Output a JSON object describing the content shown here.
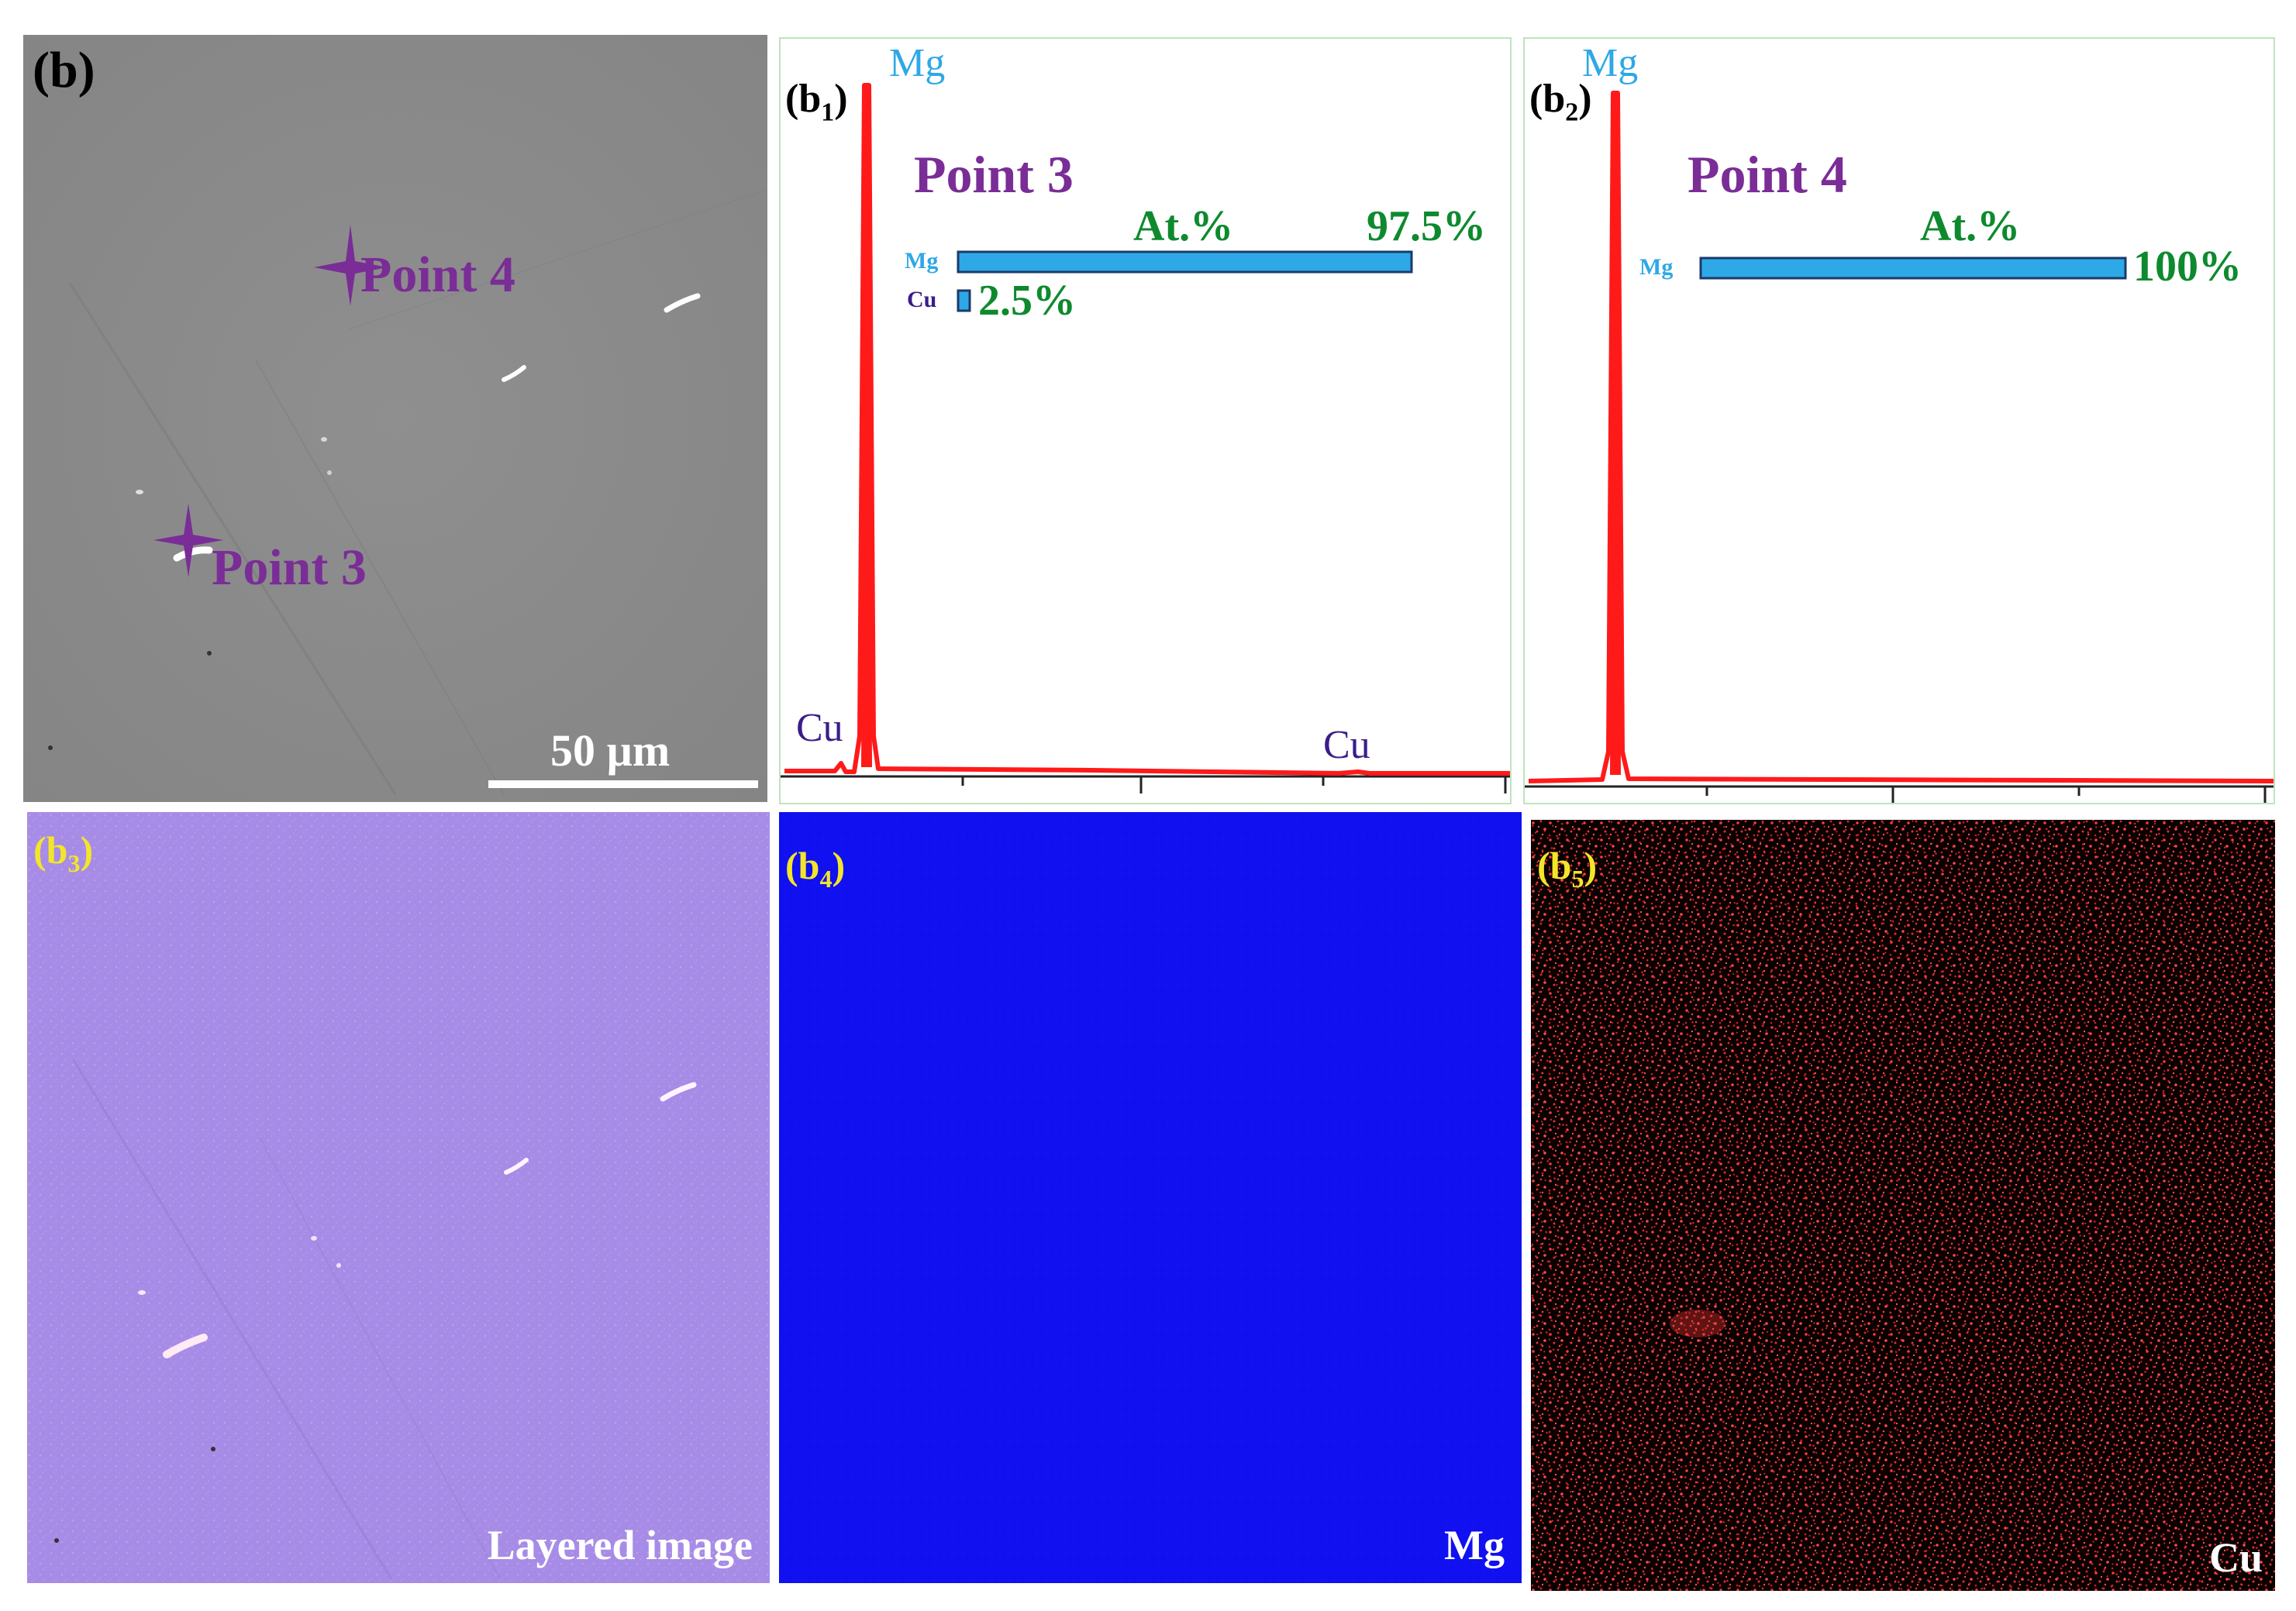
{
  "panels": {
    "b": {
      "label": "(b)",
      "scale_bar": "50 µm",
      "points": [
        {
          "label": "Point 4"
        },
        {
          "label": "Point 3"
        }
      ]
    },
    "b1": {
      "label_main": "(b",
      "label_sub": "1",
      "label_close": ")"
    },
    "b2": {
      "label_main": "(b",
      "label_sub": "2",
      "label_close": ")"
    },
    "b3": {
      "label_main": "(b",
      "label_sub": "3",
      "label_close": ")",
      "caption": "Layered image"
    },
    "b4": {
      "label_main": "(b",
      "label_sub": "4",
      "label_close": ")",
      "caption": "Mg"
    },
    "b5": {
      "label_main": "(b",
      "label_sub": "5",
      "label_close": ")",
      "caption": "Cu"
    }
  },
  "chart_data": [
    {
      "type": "line",
      "panel": "b1",
      "peak_labels": [
        "Mg",
        "Cu",
        "Cu"
      ],
      "inset": {
        "type": "bar",
        "title": "Point 3",
        "unit_label": "At.%",
        "categories": [
          "Mg",
          "Cu"
        ],
        "values": [
          97.5,
          2.5
        ],
        "value_labels": [
          "97.5%",
          "2.5%"
        ]
      }
    },
    {
      "type": "line",
      "panel": "b2",
      "peak_labels": [
        "Mg"
      ],
      "inset": {
        "type": "bar",
        "title": "Point 4",
        "unit_label": "At.%",
        "categories": [
          "Mg"
        ],
        "values": [
          100
        ],
        "value_labels": [
          "100%"
        ]
      }
    }
  ],
  "colors": {
    "sem_gray": "#8a8a8a",
    "marker_purple": "#7a2d96",
    "spectrum_red": "#ff1a1a",
    "bar_blue": "#2ea8e6",
    "value_green": "#0e8a2e",
    "label_yellow": "#f3e52a",
    "mg_map_blue": "#1010f0",
    "layered_violet": "#a68ce6"
  }
}
